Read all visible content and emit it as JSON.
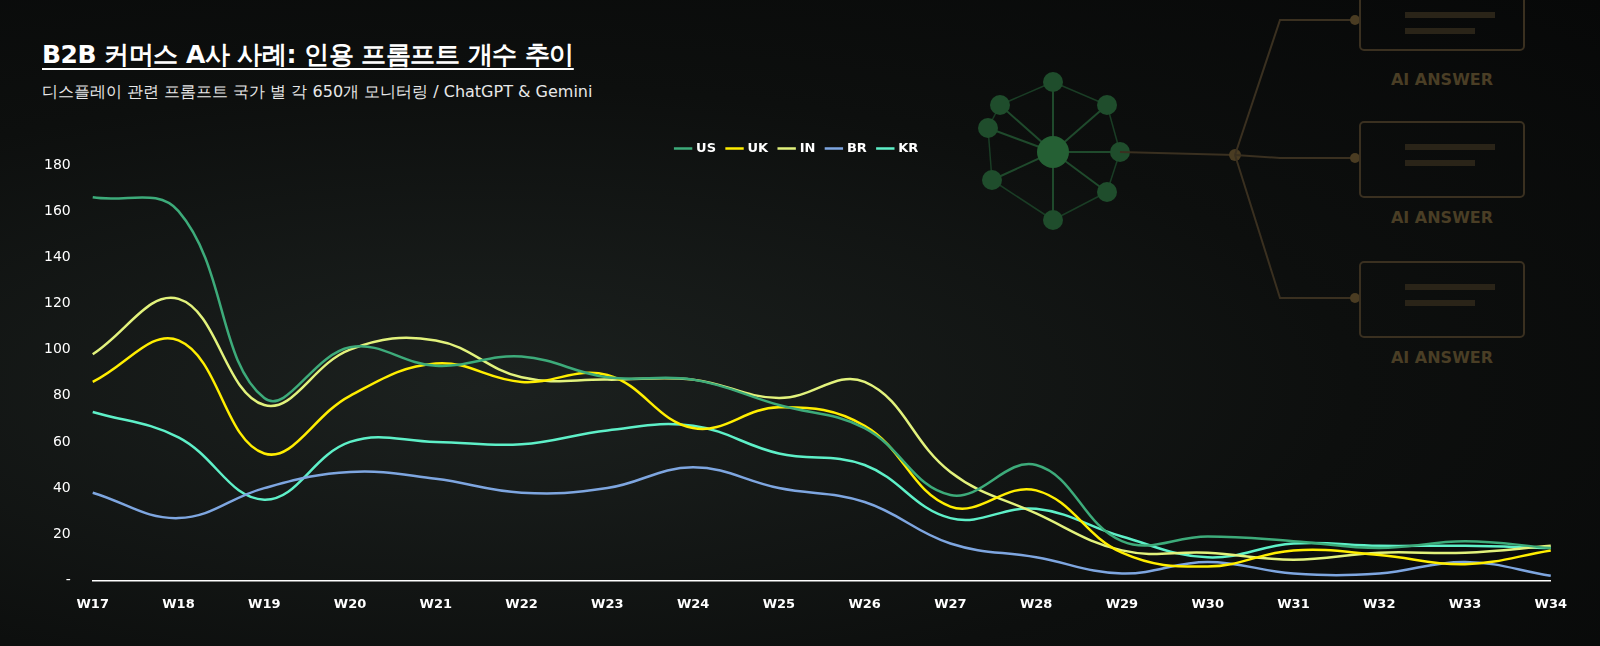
{
  "title": "B2B 커머스 A사 사례: 인용 프롬프트 개수 추이",
  "subtitle": "디스플레이 관련 프롬프트 국가 별 각 650개 모니터링 / ChatGPT & Gemini",
  "background_labels": [
    "AI ANSWER",
    "AI ANSWER",
    "AI ANSWER"
  ],
  "chart_data": {
    "type": "line",
    "categories": [
      "W17",
      "W18",
      "W19",
      "W20",
      "W21",
      "W22",
      "W23",
      "W24",
      "W25",
      "W26",
      "W27",
      "W28",
      "W29",
      "W30",
      "W31",
      "W32",
      "W33",
      "W34"
    ],
    "series": [
      {
        "name": "US",
        "color": "#3dab7a",
        "values": [
          166,
          160,
          79,
          101,
          93,
          97,
          88,
          87,
          76,
          66,
          37,
          50,
          17,
          19,
          17,
          14,
          17,
          14
        ]
      },
      {
        "name": "UK",
        "color": "#ffee00",
        "values": [
          86,
          104,
          55,
          80,
          94,
          86,
          89,
          66,
          75,
          67,
          32,
          39,
          12,
          6,
          13,
          11,
          7,
          13
        ]
      },
      {
        "name": "IN",
        "color": "#e2f27c",
        "values": [
          98,
          122,
          76,
          100,
          104,
          88,
          87,
          87,
          79,
          86,
          47,
          29,
          13,
          12,
          9,
          12,
          12,
          15
        ]
      },
      {
        "name": "BR",
        "color": "#7ea6e0",
        "values": [
          38,
          27,
          40,
          47,
          44,
          38,
          40,
          49,
          40,
          34,
          16,
          10,
          3,
          8,
          3,
          3,
          8,
          2
        ]
      },
      {
        "name": "KR",
        "color": "#5ef0c8",
        "values": [
          73,
          62,
          35,
          60,
          60,
          59,
          65,
          67,
          55,
          50,
          27,
          31,
          19,
          10,
          16,
          15,
          15,
          14
        ]
      }
    ],
    "ylim": [
      0,
      180
    ],
    "yticks": [
      {
        "value": 0,
        "label": "-"
      },
      20,
      40,
      60,
      80,
      100,
      120,
      140,
      160,
      180
    ],
    "grid": false,
    "legend": "top",
    "marker": "none",
    "line_style": "solid"
  }
}
